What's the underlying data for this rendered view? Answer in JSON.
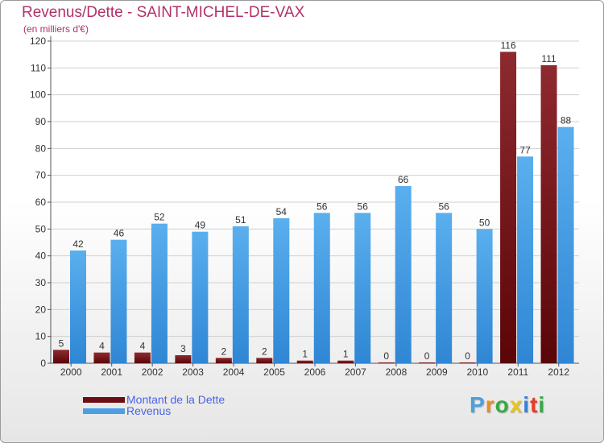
{
  "title": "Revenus/Dette - SAINT-MICHEL-DE-VAX",
  "subtitle": "(en milliers d'€)",
  "legend": [
    {
      "label": "Montant de la Dette",
      "color": "#6b0d12"
    },
    {
      "label": "Revenus",
      "color": "#4a9fe6"
    }
  ],
  "logo": {
    "letters": [
      "P",
      "r",
      "o",
      "x",
      "i",
      "t",
      "i"
    ],
    "colors": [
      "#4aa0e0",
      "#f08a1c",
      "#3aa845",
      "#e8c51a",
      "#3a7fd6",
      "#e63a2a",
      "#3aa845"
    ]
  },
  "chart_data": {
    "type": "bar",
    "categories": [
      "2000",
      "2001",
      "2002",
      "2003",
      "2004",
      "2005",
      "2006",
      "2007",
      "2008",
      "2009",
      "2010",
      "2011",
      "2012"
    ],
    "series": [
      {
        "name": "Montant de la Dette",
        "color": "#6b0d12",
        "values": [
          5,
          4,
          4,
          3,
          2,
          2,
          1,
          1,
          0,
          0,
          0,
          116,
          111
        ]
      },
      {
        "name": "Revenus",
        "color": "#4a9fe6",
        "values": [
          42,
          46,
          52,
          49,
          51,
          54,
          56,
          56,
          66,
          56,
          50,
          77,
          88
        ]
      }
    ],
    "yticks": [
      0,
      10,
      20,
      30,
      40,
      50,
      60,
      70,
      80,
      90,
      100,
      110,
      120
    ],
    "ylim": [
      0,
      120
    ],
    "grid": true,
    "legend_position": "bottom-left"
  }
}
